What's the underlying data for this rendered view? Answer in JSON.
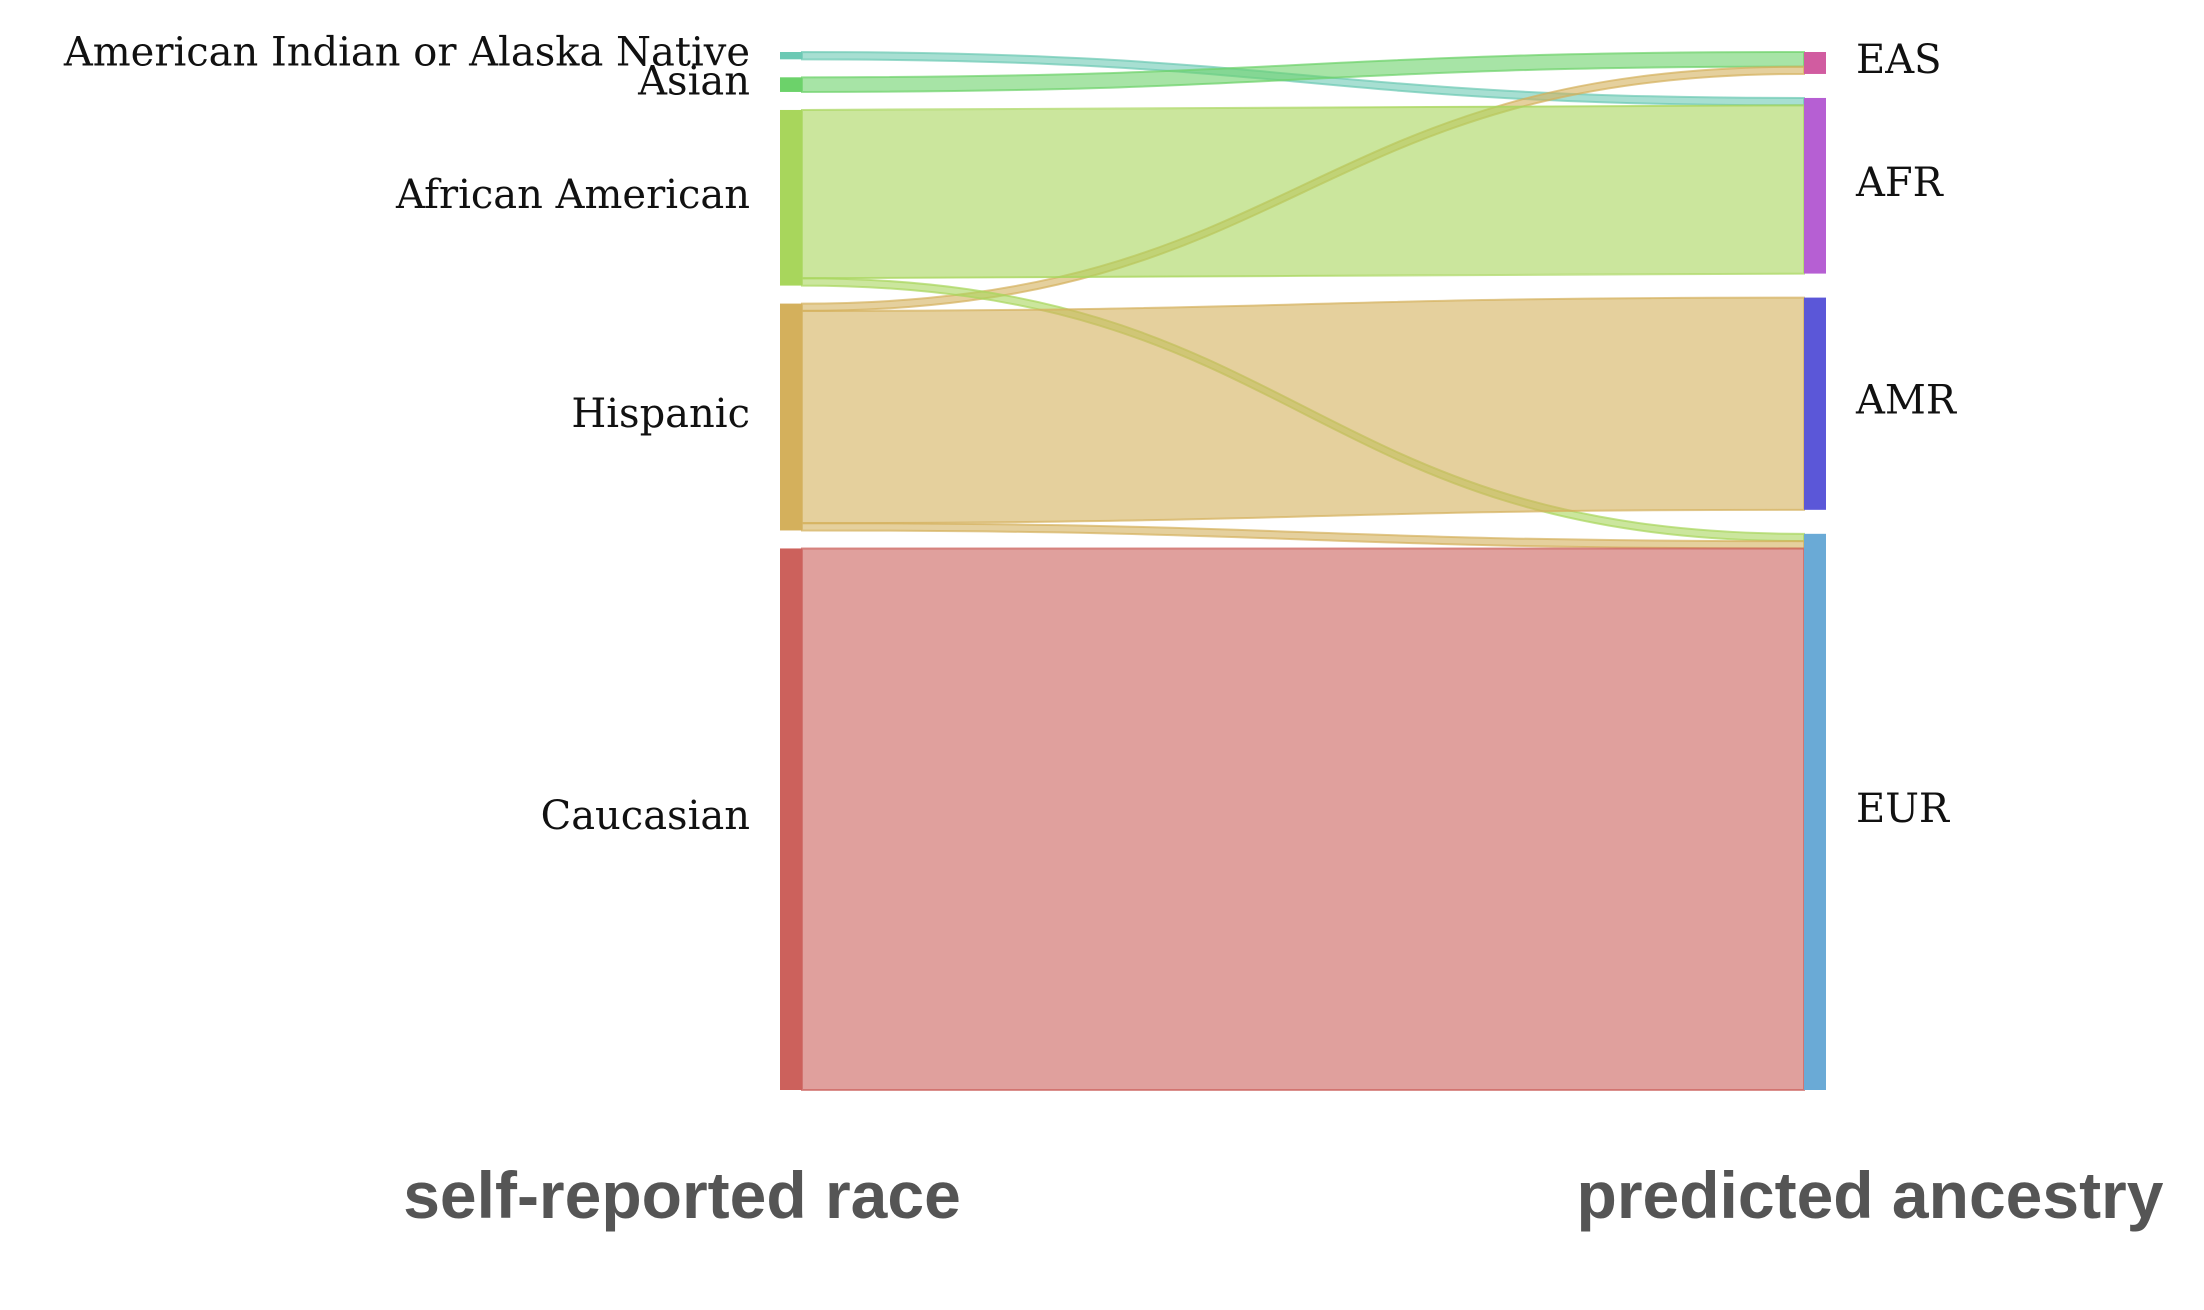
{
  "chart_data": {
    "type": "sankey",
    "left_axis_title": "self-reported race",
    "right_axis_title": "predicted ancestry",
    "sources": [
      {
        "name": "American Indian or Alaska Native",
        "color": "#6cc9b4"
      },
      {
        "name": "Asian",
        "color": "#6cd26a"
      },
      {
        "name": "African American",
        "color": "#a8d65c"
      },
      {
        "name": "Hispanic",
        "color": "#d4b05c"
      },
      {
        "name": "Caucasian",
        "color": "#cc615c"
      }
    ],
    "targets": [
      {
        "name": "EAS",
        "color": "#d15ca0"
      },
      {
        "name": "AFR",
        "color": "#b65fd3"
      },
      {
        "name": "AMR",
        "color": "#5b57d8"
      },
      {
        "name": "EUR",
        "color": "#6aaad6"
      }
    ],
    "links": [
      {
        "source": "American Indian or Alaska Native",
        "target": "AFR",
        "value": 1
      },
      {
        "source": "Asian",
        "target": "EAS",
        "value": 2
      },
      {
        "source": "Hispanic",
        "target": "EAS",
        "value": 1
      },
      {
        "source": "African American",
        "target": "AFR",
        "value": 23
      },
      {
        "source": "African American",
        "target": "EUR",
        "value": 1
      },
      {
        "source": "Hispanic",
        "target": "AMR",
        "value": 29
      },
      {
        "source": "Hispanic",
        "target": "EUR",
        "value": 1
      },
      {
        "source": "Caucasian",
        "target": "EUR",
        "value": 74
      }
    ]
  }
}
